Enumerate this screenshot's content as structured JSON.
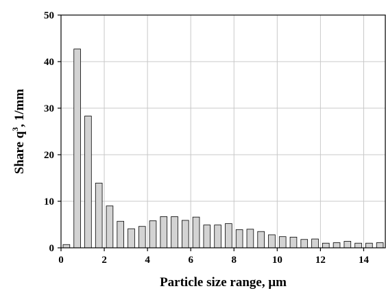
{
  "chart_data": {
    "type": "bar",
    "title": "",
    "xlabel": "Particle size range, μm",
    "ylabel_parts": {
      "base": "Share q",
      "sup": "3",
      "rest": ", 1/mm"
    },
    "xlim": [
      0,
      15
    ],
    "ylim": [
      0,
      50
    ],
    "bin_width": 0.5,
    "x_ticks": [
      0,
      2,
      4,
      6,
      8,
      10,
      12,
      14
    ],
    "y_ticks": [
      0,
      10,
      20,
      30,
      40,
      50
    ],
    "grid": true,
    "bar_color": "#d3d3d3",
    "bar_stroke": "#000000",
    "x": [
      0.25,
      0.75,
      1.25,
      1.75,
      2.25,
      2.75,
      3.25,
      3.75,
      4.25,
      4.75,
      5.25,
      5.75,
      6.25,
      6.75,
      7.25,
      7.75,
      8.25,
      8.75,
      9.25,
      9.75,
      10.25,
      10.75,
      11.25,
      11.75,
      12.25,
      12.75,
      13.25,
      13.75,
      14.25,
      14.75
    ],
    "values": [
      0.7,
      42.7,
      28.3,
      13.9,
      9.0,
      5.7,
      4.1,
      4.6,
      5.8,
      6.7,
      6.7,
      5.9,
      6.6,
      4.9,
      4.9,
      5.2,
      3.9,
      4.0,
      3.5,
      2.8,
      2.4,
      2.3,
      1.8,
      1.9,
      1.0,
      1.1,
      1.4,
      1.0,
      1.0,
      1.1
    ]
  }
}
